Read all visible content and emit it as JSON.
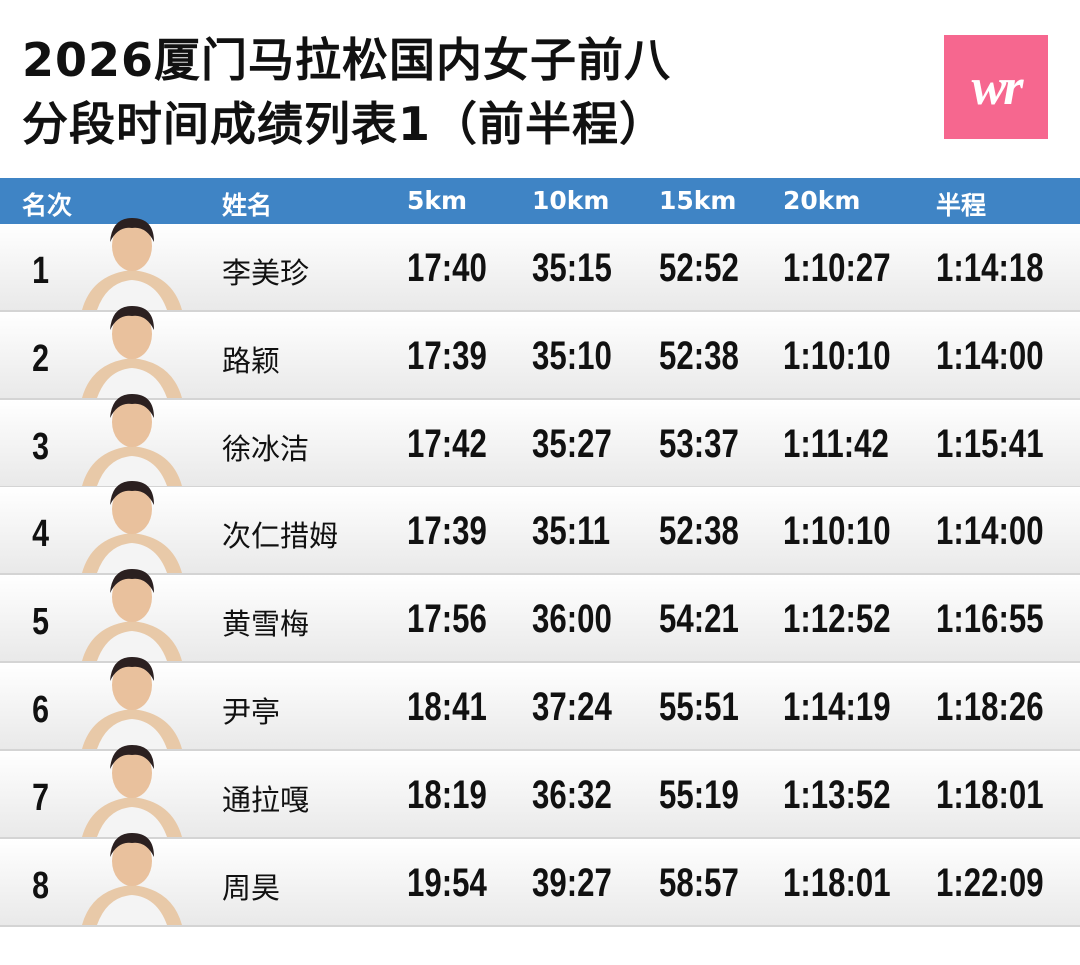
{
  "title": {
    "line1": "2026厦门马拉松国内女子前八",
    "line2": "分段时间成绩列表1（前半程）"
  },
  "logo": {
    "text": "wr",
    "color": "#f6678f"
  },
  "header": {
    "color": "#3f84c5",
    "columns": [
      "名次",
      "姓名",
      "5km",
      "10km",
      "15km",
      "20km",
      "半程"
    ]
  },
  "rows": [
    {
      "rank": "1",
      "name": "李美珍",
      "splits": [
        "17:40",
        "35:15",
        "52:52",
        "1:10:27",
        "1:14:18"
      ]
    },
    {
      "rank": "2",
      "name": "路颖",
      "splits": [
        "17:39",
        "35:10",
        "52:38",
        "1:10:10",
        "1:14:00"
      ]
    },
    {
      "rank": "3",
      "name": "徐冰洁",
      "splits": [
        "17:42",
        "35:27",
        "53:37",
        "1:11:42",
        "1:15:41"
      ]
    },
    {
      "rank": "4",
      "name": "次仁措姆",
      "splits": [
        "17:39",
        "35:11",
        "52:38",
        "1:10:10",
        "1:14:00"
      ]
    },
    {
      "rank": "5",
      "name": "黄雪梅",
      "splits": [
        "17:56",
        "36:00",
        "54:21",
        "1:12:52",
        "1:16:55"
      ]
    },
    {
      "rank": "6",
      "name": "尹亭",
      "splits": [
        "18:41",
        "37:24",
        "55:51",
        "1:14:19",
        "1:18:26"
      ]
    },
    {
      "rank": "7",
      "name": "通拉嘎",
      "splits": [
        "18:19",
        "36:32",
        "55:19",
        "1:13:52",
        "1:18:01"
      ]
    },
    {
      "rank": "8",
      "name": "周昊",
      "splits": [
        "19:54",
        "39:27",
        "58:57",
        "1:18:01",
        "1:22:09"
      ]
    }
  ]
}
